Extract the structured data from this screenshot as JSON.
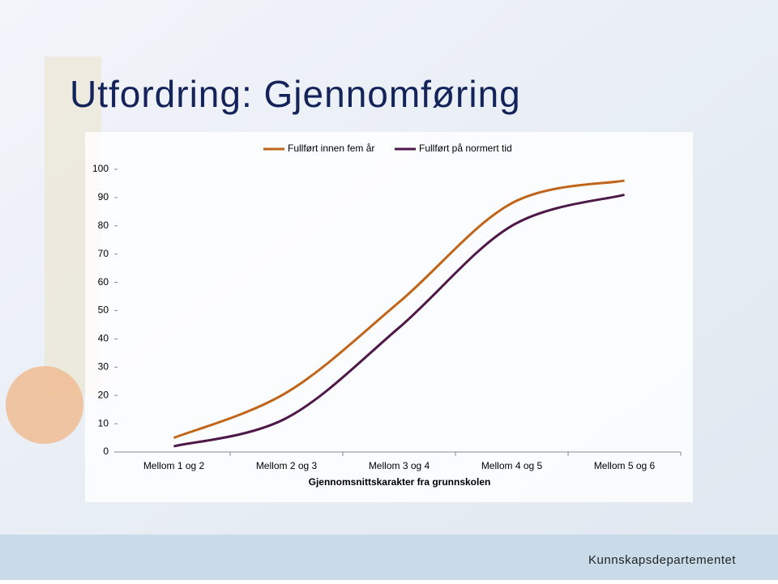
{
  "slide": {
    "title": "Utfordring: Gjennomføring",
    "footer": "Kunnskapsdepartementet"
  },
  "chart_data": {
    "type": "line",
    "smooth": true,
    "x_label": "Gjennomsnittskarakter fra grunnskolen",
    "categories": [
      "Mellom 1 og 2",
      "Mellom 2 og 3",
      "Mellom 3 og 4",
      "Mellom 4 og 5",
      "Mellom 5 og 6"
    ],
    "series": [
      {
        "name": "Fullført innen fem år",
        "color": "#c0651a",
        "values": [
          5,
          21,
          53,
          88,
          96
        ]
      },
      {
        "name": "Fullført på normert tid",
        "color": "#4e1848",
        "values": [
          2,
          12,
          44,
          80,
          91
        ]
      }
    ],
    "ylim": [
      0,
      100
    ],
    "yticks": [
      0,
      10,
      20,
      30,
      40,
      50,
      60,
      70,
      80,
      90,
      100
    ],
    "grid": false,
    "legend": "top"
  }
}
